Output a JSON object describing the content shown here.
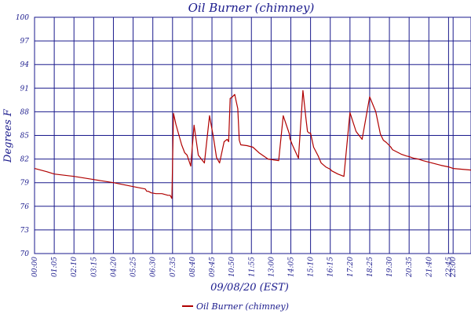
{
  "chart_data": {
    "type": "line",
    "title": "Oil Burner (chimney)",
    "xlabel": "09/08/20 (EST)",
    "ylabel": "Degrees F",
    "y_tick_labels": [
      "100",
      "97",
      "94",
      "91",
      "88",
      "85",
      "82",
      "79",
      "76",
      "73",
      "70"
    ],
    "ylim": [
      70,
      100
    ],
    "x_tick_labels": [
      "00:00",
      "01:05",
      "02:10",
      "03:15",
      "04:20",
      "05:25",
      "06:30",
      "07:35",
      "08:40",
      "09:45",
      "10:50",
      "11:55",
      "13:00",
      "14:05",
      "15:10",
      "16:15",
      "17:20",
      "18:25",
      "19:30",
      "20:35",
      "21:40",
      "22:45",
      "23:00"
    ],
    "xlim": [
      "00:00",
      "23:59"
    ],
    "grid": true,
    "legend_position": "bottom",
    "line_color": "#b00000",
    "axis_color": "#1a1a8c",
    "series": [
      {
        "name": "Oil Burner (chimney)",
        "x": [
          "00:00",
          "00:40",
          "01:05",
          "02:10",
          "03:15",
          "04:20",
          "05:25",
          "06:05",
          "06:10",
          "06:15",
          "06:25",
          "06:40",
          "07:00",
          "07:20",
          "07:27",
          "07:30",
          "07:33",
          "07:38",
          "07:46",
          "08:05",
          "08:15",
          "08:23",
          "08:35",
          "08:46",
          "09:00",
          "09:20",
          "09:37",
          "09:50",
          "10:00",
          "10:10",
          "10:25",
          "10:35",
          "10:40",
          "10:45",
          "10:50",
          "11:00",
          "11:10",
          "11:15",
          "11:20",
          "11:40",
          "12:00",
          "12:20",
          "12:50",
          "13:25",
          "13:40",
          "14:00",
          "14:02",
          "14:10",
          "14:30",
          "14:45",
          "14:55",
          "15:00",
          "15:05",
          "15:10",
          "15:20",
          "15:35",
          "15:45",
          "16:00",
          "16:15",
          "16:20",
          "16:40",
          "17:00",
          "17:20",
          "17:40",
          "18:00",
          "18:25",
          "18:45",
          "19:00",
          "19:10",
          "19:13",
          "19:20",
          "19:30",
          "19:35",
          "19:40",
          "19:50",
          "20:00",
          "20:10",
          "20:25",
          "20:35",
          "20:50",
          "21:05",
          "21:20",
          "21:40",
          "22:00",
          "22:20",
          "22:45",
          "23:00",
          "23:59"
        ],
        "y": [
          80.8,
          80.4,
          80.1,
          79.8,
          79.4,
          79.0,
          78.5,
          78.2,
          77.9,
          77.9,
          77.7,
          77.6,
          77.6,
          77.4,
          77.4,
          77.2,
          77.0,
          87.8,
          86.4,
          83.8,
          82.8,
          82.5,
          81.1,
          86.3,
          82.5,
          81.5,
          87.5,
          84.7,
          82.2,
          81.5,
          84.2,
          84.5,
          84.2,
          89.7,
          89.8,
          90.2,
          88.4,
          84.4,
          83.8,
          83.7,
          83.5,
          82.8,
          82.0,
          81.8,
          87.5,
          85.2,
          84.6,
          83.8,
          82.1,
          90.7,
          87.1,
          85.5,
          85.3,
          85.3,
          83.5,
          82.4,
          81.5,
          81.0,
          80.7,
          80.5,
          80.1,
          79.8,
          87.9,
          85.5,
          84.5,
          89.9,
          88.0,
          85.2,
          84.4,
          84.3,
          84.1,
          83.7,
          83.5,
          83.2,
          83.0,
          82.8,
          82.6,
          82.4,
          82.3,
          82.1,
          82.0,
          81.8,
          81.6,
          81.4,
          81.2,
          81.0,
          80.8,
          80.6
        ]
      }
    ]
  }
}
